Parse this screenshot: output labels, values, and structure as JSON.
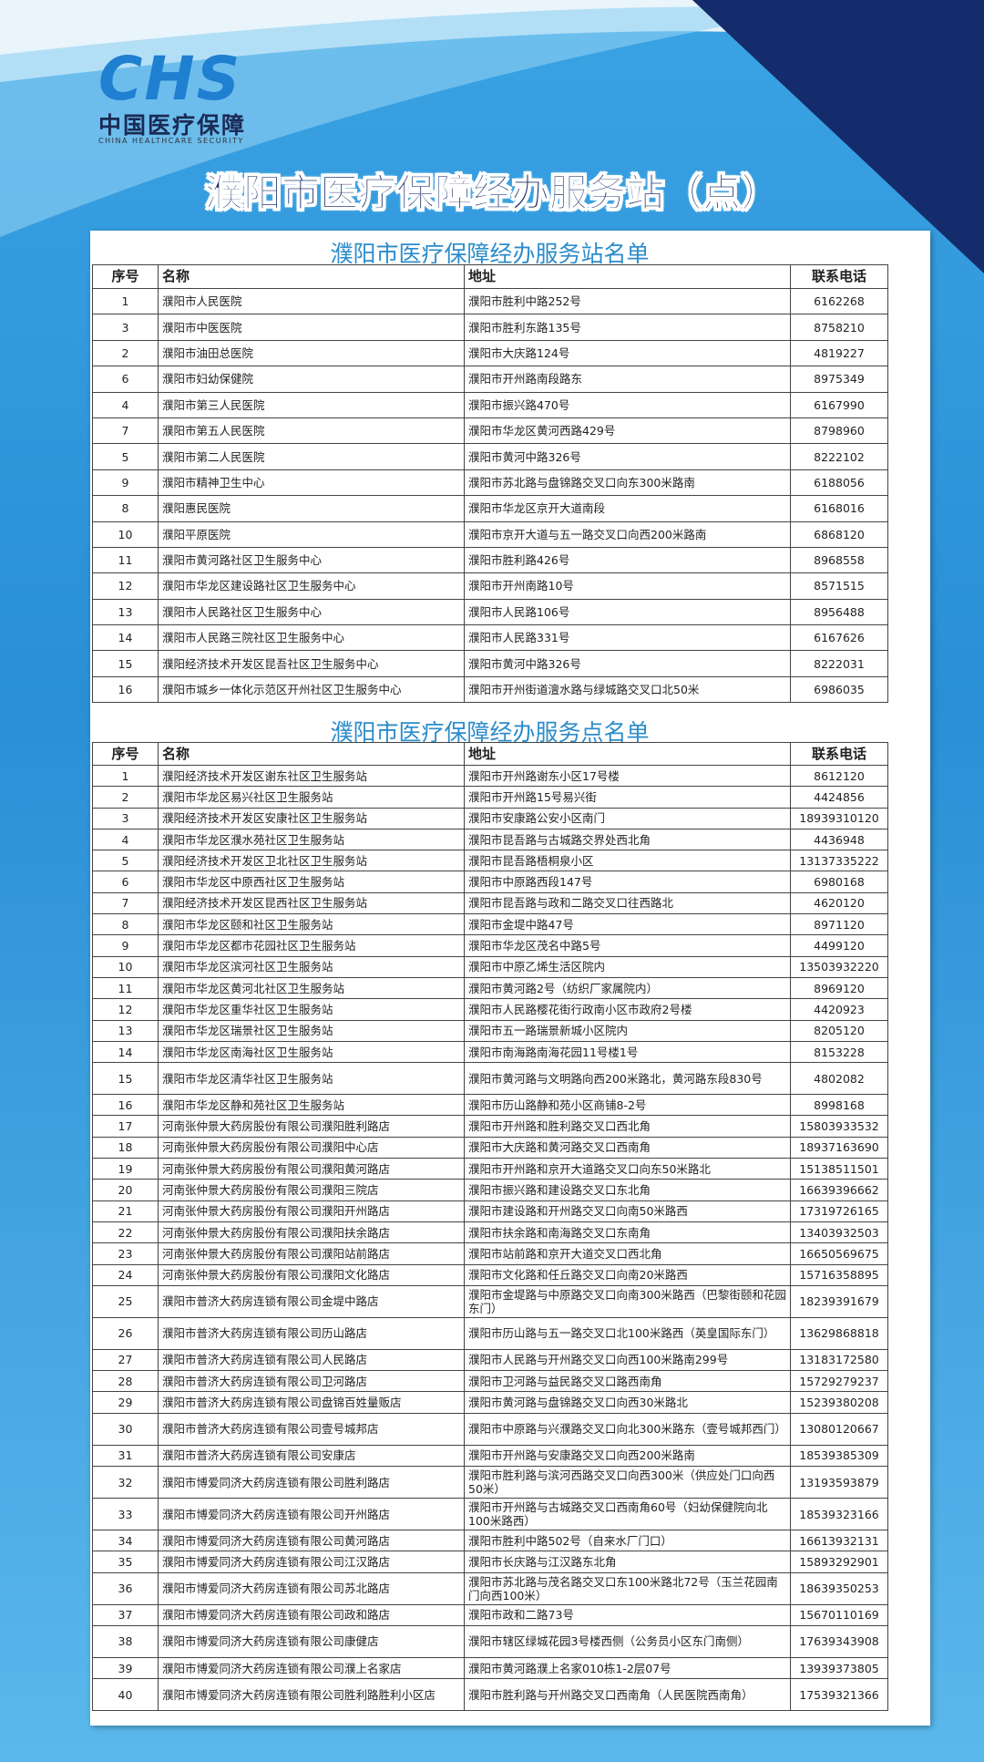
{
  "header": {
    "logo_mark": "CHS",
    "logo_cn": "中国医疗保障",
    "logo_en": "CHINA HEALTHCARE SECURITY",
    "title": "濮阳市医疗保障经办服务站（点）"
  },
  "tables": [
    {
      "title": "濮阳市医疗保障经办服务站名单",
      "columns": [
        "序号",
        "名称",
        "地址",
        "联系电话"
      ],
      "rows": [
        [
          "1",
          "濮阳市人民医院",
          "濮阳市胜利中路252号",
          "6162268"
        ],
        [
          "3",
          "濮阳市中医医院",
          "濮阳市胜利东路135号",
          "8758210"
        ],
        [
          "2",
          "濮阳市油田总医院",
          "濮阳市大庆路124号",
          "4819227"
        ],
        [
          "6",
          "濮阳市妇幼保健院",
          "濮阳市开州路南段路东",
          "8975349"
        ],
        [
          "4",
          "濮阳市第三人民医院",
          "濮阳市振兴路470号",
          "6167990"
        ],
        [
          "7",
          "濮阳市第五人民医院",
          "濮阳市华龙区黄河西路429号",
          "8798960"
        ],
        [
          "5",
          "濮阳市第二人民医院",
          "濮阳市黄河中路326号",
          "8222102"
        ],
        [
          "9",
          "濮阳市精神卫生中心",
          "濮阳市苏北路与盘锦路交叉口向东300米路南",
          "6188056"
        ],
        [
          "8",
          "濮阳惠民医院",
          "濮阳市华龙区京开大道南段",
          "6168016"
        ],
        [
          "10",
          "濮阳平原医院",
          "濮阳市京开大道与五一路交叉口向西200米路南",
          "6868120"
        ],
        [
          "11",
          "濮阳市黄河路社区卫生服务中心",
          "濮阳市胜利路426号",
          "8968558"
        ],
        [
          "12",
          "濮阳市华龙区建设路社区卫生服务中心",
          "濮阳市开州南路10号",
          "8571515"
        ],
        [
          "13",
          "濮阳市人民路社区卫生服务中心",
          "濮阳市人民路106号",
          "8956488"
        ],
        [
          "14",
          "濮阳市人民路三院社区卫生服务中心",
          "濮阳市人民路331号",
          "6167626"
        ],
        [
          "15",
          "濮阳经济技术开发区昆吾社区卫生服务中心",
          "濮阳市黄河中路326号",
          "8222031"
        ],
        [
          "16",
          "濮阳市城乡一体化示范区开州社区卫生服务中心",
          "濮阳市开州街道澶水路与绿城路交叉口北50米",
          "6986035"
        ]
      ]
    },
    {
      "title": "濮阳市医疗保障经办服务点名单",
      "columns": [
        "序号",
        "名称",
        "地址",
        "联系电话"
      ],
      "rows": [
        [
          "1",
          "濮阳经济技术开发区谢东社区卫生服务站",
          "濮阳市开州路谢东小区17号楼",
          "8612120"
        ],
        [
          "2",
          "濮阳市华龙区易兴社区卫生服务站",
          "濮阳市开州路15号易兴街",
          "4424856"
        ],
        [
          "3",
          "濮阳经济技术开发区安康社区卫生服务站",
          "濮阳市安康路公安小区南门",
          "18939310120"
        ],
        [
          "4",
          "濮阳市华龙区濮水苑社区卫生服务站",
          "濮阳市昆吾路与古城路交界处西北角",
          "4436948"
        ],
        [
          "5",
          "濮阳经济技术开发区卫北社区卫生服务站",
          "濮阳市昆吾路梧桐泉小区",
          "13137335222"
        ],
        [
          "6",
          "濮阳市华龙区中原西社区卫生服务站",
          "濮阳市中原路西段147号",
          "6980168"
        ],
        [
          "7",
          "濮阳经济技术开发区昆西社区卫生服务站",
          "濮阳市昆吾路与政和二路交叉口往西路北",
          "4620120"
        ],
        [
          "8",
          "濮阳市华龙区颐和社区卫生服务站",
          "濮阳市金堤中路47号",
          "8971120"
        ],
        [
          "9",
          "濮阳市华龙区都市花园社区卫生服务站",
          "濮阳市华龙区茂名中路5号",
          "4499120"
        ],
        [
          "10",
          "濮阳市华龙区滨河社区卫生服务站",
          "濮阳市中原乙烯生活区院内",
          "13503932220"
        ],
        [
          "11",
          "濮阳市华龙区黄河北社区卫生服务站",
          "濮阳市黄河路2号（纺织厂家属院内）",
          "8969120"
        ],
        [
          "12",
          "濮阳市华龙区重华社区卫生服务站",
          "濮阳市人民路樱花街行政南小区市政府2号楼",
          "4420923"
        ],
        [
          "13",
          "濮阳市华龙区瑞景社区卫生服务站",
          "濮阳市五一路瑞景新城小区院内",
          "8205120"
        ],
        [
          "14",
          "濮阳市华龙区南海社区卫生服务站",
          "濮阳市南海路南海花园11号楼1号",
          "8153228"
        ],
        [
          "15",
          "濮阳市华龙区清华社区卫生服务站",
          "濮阳市黄河路与文明路向西200米路北，黄河路东段830号",
          "4802082"
        ],
        [
          "16",
          "濮阳市华龙区静和苑社区卫生服务站",
          "濮阳市历山路静和苑小区商铺8-2号",
          "8998168"
        ],
        [
          "17",
          "河南张仲景大药房股份有限公司濮阳胜利路店",
          "濮阳市开州路和胜利路交叉口西北角",
          "15803933532"
        ],
        [
          "18",
          "河南张仲景大药房股份有限公司濮阳中心店",
          "濮阳市大庆路和黄河路交叉口西南角",
          "18937163690"
        ],
        [
          "19",
          "河南张仲景大药房股份有限公司濮阳黄河路店",
          "濮阳市开州路和京开大道路交叉口向东50米路北",
          "15138511501"
        ],
        [
          "20",
          "河南张仲景大药房股份有限公司濮阳三院店",
          "濮阳市振兴路和建设路交叉口东北角",
          "16639396662"
        ],
        [
          "21",
          "河南张仲景大药房股份有限公司濮阳开州路店",
          "濮阳市建设路和开州路交叉口向南50米路西",
          "17319726165"
        ],
        [
          "22",
          "河南张仲景大药房股份有限公司濮阳扶余路店",
          "濮阳市扶余路和南海路交叉口东南角",
          "13403932503"
        ],
        [
          "23",
          "河南张仲景大药房股份有限公司濮阳站前路店",
          "濮阳市站前路和京开大道交叉口西北角",
          "16650569675"
        ],
        [
          "24",
          "河南张仲景大药房股份有限公司濮阳文化路店",
          "濮阳市文化路和任丘路交叉口向南20米路西",
          "15716358895"
        ],
        [
          "25",
          "濮阳市普济大药房连锁有限公司金堤中路店",
          "濮阳市金堤路与中原路交叉口向南300米路西（巴黎街颐和花园东门）",
          "18239391679"
        ],
        [
          "26",
          "濮阳市普济大药房连锁有限公司历山路店",
          "濮阳市历山路与五一路交叉口北100米路西（英皇国际东门）",
          "13629868818"
        ],
        [
          "27",
          "濮阳市普济大药房连锁有限公司人民路店",
          "濮阳市人民路与开州路交叉口向西100米路南299号",
          "13183172580"
        ],
        [
          "28",
          "濮阳市普济大药房连锁有限公司卫河路店",
          "濮阳市卫河路与益民路交叉口路西南角",
          "15729279237"
        ],
        [
          "29",
          "濮阳市普济大药房连锁有限公司盘锦百姓量贩店",
          "濮阳市黄河路与盘锦路交叉口向西30米路北",
          "15239380208"
        ],
        [
          "30",
          "濮阳市普济大药房连锁有限公司壹号城邦店",
          "濮阳市中原路与兴濮路交叉口向北300米路东（壹号城邦西门）",
          "13080120667"
        ],
        [
          "31",
          "濮阳市普济大药房连锁有限公司安康店",
          "濮阳市开州路与安康路交叉口向西200米路南",
          "18539385309"
        ],
        [
          "32",
          "濮阳市博爱同济大药房连锁有限公司胜利路店",
          "濮阳市胜利路与滨河西路交叉口向西300米（供应处门口向西50米）",
          "13193593879"
        ],
        [
          "33",
          "濮阳市博爱同济大药房连锁有限公司开州路店",
          "濮阳市开州路与古城路交叉口西南角60号（妇幼保健院向北100米路西）",
          "18539323166"
        ],
        [
          "34",
          "濮阳市博爱同济大药房连锁有限公司黄河路店",
          "濮阳市胜利中路502号（自来水厂门口）",
          "16613932131"
        ],
        [
          "35",
          "濮阳市博爱同济大药房连锁有限公司江汉路店",
          "濮阳市长庆路与江汉路东北角",
          "15893292901"
        ],
        [
          "36",
          "濮阳市博爱同济大药房连锁有限公司苏北路店",
          "濮阳市苏北路与茂名路交叉口东100米路北72号（玉兰花园南门向西100米）",
          "18639350253"
        ],
        [
          "37",
          "濮阳市博爱同济大药房连锁有限公司政和路店",
          "濮阳市政和二路73号",
          "15670110169"
        ],
        [
          "38",
          "濮阳市博爱同济大药房连锁有限公司康健店",
          "濮阳市辖区绿城花园3号楼西侧（公务员小区东门南侧）",
          "17639343908"
        ],
        [
          "39",
          "濮阳市博爱同济大药房连锁有限公司濮上名家店",
          "濮阳市黄河路濮上名家010栋1-2层07号",
          "13939373805"
        ],
        [
          "40",
          "濮阳市博爱同济大药房连锁有限公司胜利路胜利小区店",
          "濮阳市胜利路与开州路交叉口西南角（人民医院西南角）",
          "17539321366"
        ]
      ]
    }
  ]
}
